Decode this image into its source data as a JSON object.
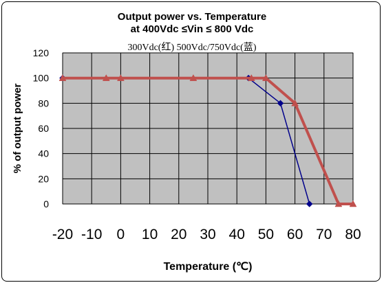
{
  "chart_data": {
    "type": "line",
    "title": "Output power vs. Temperature",
    "subtitle": "at 400Vdc ≤Vin ≤ 800 Vdc",
    "legend_text": "300Vdc(红)  500Vdc/750Vdc(蓝)",
    "xlabel": "Temperature (℃)",
    "ylabel": "% of output power",
    "xlim": [
      -20,
      80
    ],
    "ylim": [
      0,
      120
    ],
    "x_ticks": [
      "-20",
      "-10",
      "0",
      "10",
      "20",
      "30",
      "40",
      "50",
      "60",
      "70",
      "80"
    ],
    "y_ticks": [
      "0",
      "20",
      "40",
      "60",
      "80",
      "100",
      "120"
    ],
    "grid": true,
    "series": [
      {
        "color": "#00008b",
        "marker": "diamond",
        "x": [
          -20,
          44,
          55,
          65
        ],
        "y": [
          100,
          100,
          80,
          0
        ]
      },
      {
        "color": "#c0504d",
        "marker": "triangle",
        "x": [
          -20,
          -5,
          0,
          25,
          45,
          50,
          60,
          75,
          80
        ],
        "y": [
          100,
          100,
          100,
          100,
          100,
          100,
          80,
          0,
          0
        ]
      }
    ]
  }
}
